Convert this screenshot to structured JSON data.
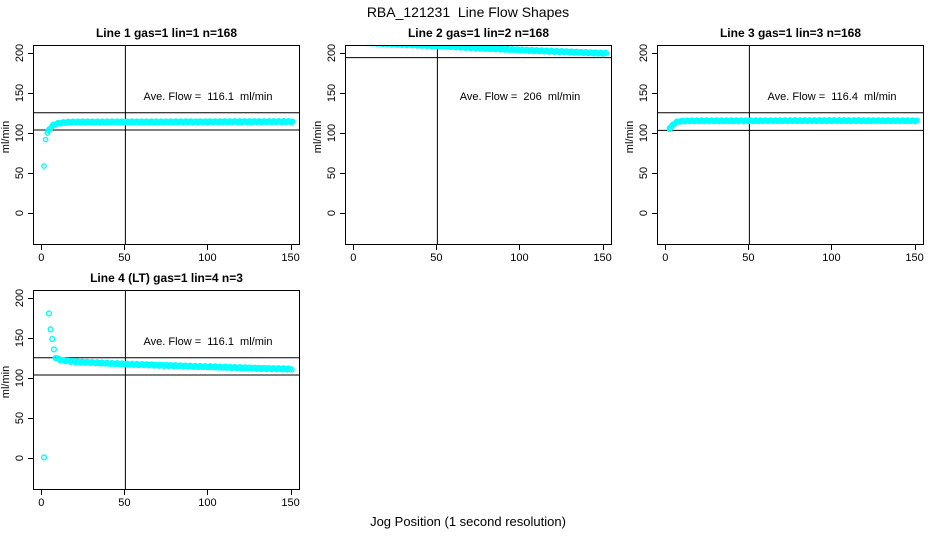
{
  "figure": {
    "title": "RBA_121231  Line Flow Shapes",
    "xlabel": "Jog Position (1 second resolution)",
    "background": "#ffffff",
    "line_color": "#000000"
  },
  "marker": {
    "shape": "open-circle",
    "color": "#00FFFF"
  },
  "chart_data": [
    {
      "type": "scatter",
      "title": "Line 1 gas=1 lin=1 n=168",
      "annotation": "Ave. Flow =  116.1  ml/min",
      "ave_flow": 116.1,
      "n": 168,
      "ylabel": "ml/min",
      "xticks": [
        "0",
        "50",
        "100",
        "150"
      ],
      "yticks": [
        "0",
        "50",
        "100",
        "150",
        "200"
      ],
      "xtick_values": [
        0,
        50,
        100,
        150
      ],
      "ytick_values": [
        0,
        50,
        100,
        150,
        200
      ],
      "xlim": [
        -5,
        155.7
      ],
      "ylim": [
        -40,
        210
      ],
      "vline_x": 50,
      "hlines": [
        126.5,
        105
      ],
      "outliers": [
        [
          1,
          60
        ],
        [
          2,
          93
        ]
      ],
      "curve": [
        [
          3,
          101
        ],
        [
          4,
          105
        ],
        [
          5,
          108
        ],
        [
          6,
          110
        ],
        [
          7,
          111.5
        ],
        [
          8,
          112.5
        ],
        [
          10,
          113.5
        ],
        [
          13,
          114.3
        ],
        [
          16,
          114.8
        ],
        [
          20,
          115
        ],
        [
          60,
          115
        ],
        [
          100,
          115.2
        ],
        [
          151,
          115.5
        ]
      ],
      "marker_step": 0.6,
      "jitter": 0.9,
      "marker_r": 2.2
    },
    {
      "type": "scatter",
      "title": "Line 2 gas=1 lin=2 n=168",
      "annotation": "Ave. Flow =  206  ml/min",
      "ave_flow": 206,
      "n": 168,
      "ylabel": "ml/min",
      "xticks": [
        "0",
        "50",
        "100",
        "150"
      ],
      "yticks": [
        "0",
        "50",
        "100",
        "150",
        "200"
      ],
      "xtick_values": [
        0,
        50,
        100,
        150
      ],
      "ytick_values": [
        0,
        50,
        100,
        150,
        200
      ],
      "xlim": [
        -5,
        155.7
      ],
      "ylim": [
        -40,
        210
      ],
      "vline_x": 50,
      "hlines": [
        195.5
      ],
      "outliers": [],
      "curve": [
        [
          1,
          214.8
        ],
        [
          30,
          211.8
        ],
        [
          52,
          210
        ],
        [
          70,
          208
        ],
        [
          90,
          206
        ],
        [
          110,
          204.2
        ],
        [
          130,
          202.5
        ],
        [
          152,
          200.8
        ]
      ],
      "marker_step": 0.75,
      "jitter": 1.0,
      "marker_r": 2.2
    },
    {
      "type": "scatter",
      "title": "Line 3 gas=1 lin=3 n=168",
      "annotation": "Ave. Flow =  116.4  ml/min",
      "ave_flow": 116.4,
      "n": 168,
      "ylabel": "ml/min",
      "xticks": [
        "0",
        "50",
        "100",
        "150"
      ],
      "yticks": [
        "0",
        "50",
        "100",
        "150",
        "200"
      ],
      "xtick_values": [
        0,
        50,
        100,
        150
      ],
      "ytick_values": [
        0,
        50,
        100,
        150,
        200
      ],
      "xlim": [
        -5,
        155.7
      ],
      "ylim": [
        -40,
        210
      ],
      "vline_x": 50,
      "hlines": [
        126.5,
        104.5
      ],
      "outliers": [
        [
          2,
          107.5
        ]
      ],
      "curve": [
        [
          2,
          106.5
        ],
        [
          3,
          109
        ],
        [
          4,
          111.5
        ],
        [
          5,
          113.5
        ],
        [
          6,
          114.8
        ],
        [
          8,
          115.8
        ],
        [
          10,
          116.2
        ],
        [
          15,
          116.5
        ],
        [
          50,
          116.5
        ],
        [
          100,
          116.8
        ],
        [
          151,
          116.5
        ]
      ],
      "marker_step": 0.6,
      "jitter": 0.8,
      "marker_r": 2.2
    },
    {
      "type": "scatter",
      "title": "Line 4 (LT) gas=1 lin=4 n=3",
      "annotation": "Ave. Flow =  116.1  ml/min",
      "ave_flow": 116.1,
      "n": 3,
      "ylabel": "ml/min",
      "xticks": [
        "0",
        "50",
        "100",
        "150"
      ],
      "yticks": [
        "0",
        "50",
        "100",
        "150",
        "200"
      ],
      "xtick_values": [
        0,
        50,
        100,
        150
      ],
      "ytick_values": [
        0,
        50,
        100,
        150,
        200
      ],
      "xlim": [
        -5,
        155.7
      ],
      "ylim": [
        -40,
        210
      ],
      "vline_x": 50,
      "hlines": [
        126.5,
        105
      ],
      "outliers": [
        [
          1,
          2
        ],
        [
          4,
          182
        ],
        [
          5,
          162
        ],
        [
          6,
          150
        ],
        [
          7,
          137
        ]
      ],
      "curve": [
        [
          8,
          127
        ],
        [
          10,
          124.5
        ],
        [
          12,
          123.5
        ],
        [
          15,
          122.5
        ],
        [
          20,
          121.5
        ],
        [
          25,
          121
        ],
        [
          30,
          120.5
        ],
        [
          40,
          119.5
        ],
        [
          50,
          118.5
        ],
        [
          60,
          118
        ],
        [
          70,
          117.3
        ],
        [
          80,
          116.6
        ],
        [
          90,
          115.8
        ],
        [
          100,
          115.2
        ],
        [
          110,
          114.6
        ],
        [
          120,
          114
        ],
        [
          130,
          113.4
        ],
        [
          140,
          112.9
        ],
        [
          150,
          112.4
        ]
      ],
      "marker_step": 1,
      "jitter": 0.8,
      "marker_r": 2.4
    }
  ]
}
